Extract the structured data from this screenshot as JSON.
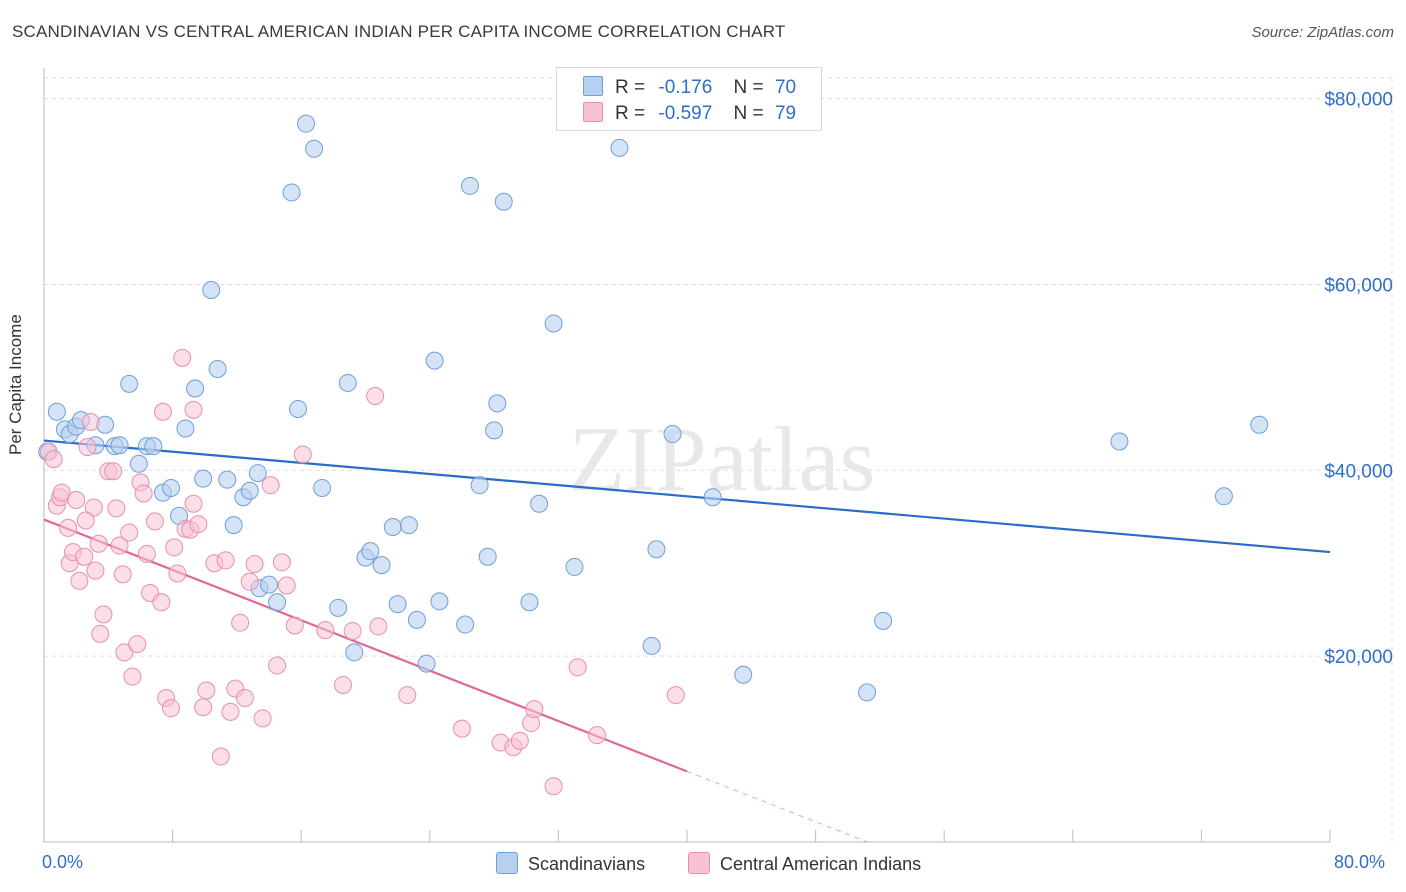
{
  "title": "SCANDINAVIAN VS CENTRAL AMERICAN INDIAN PER CAPITA INCOME CORRELATION CHART",
  "source": "Source: ZipAtlas.com",
  "watermark": "ZIPatlas",
  "legend": {
    "row1": {
      "r_label": "R =",
      "r_value": "-0.176",
      "n_label": "N =",
      "n_value": "70"
    },
    "row2": {
      "r_label": "R =",
      "r_value": "-0.597",
      "n_label": "N =",
      "n_value": "79"
    }
  },
  "bottom_legend": {
    "series1": "Scandinavians",
    "series2": "Central American Indians"
  },
  "colors": {
    "blue_fill": "#b8d0f0",
    "blue_stroke": "#6f9fd8",
    "blue_line": "#2a6dc9",
    "pink_fill": "#f7c3d3",
    "pink_stroke": "#e690ad",
    "pink_line": "#e0679a",
    "axis_text": "#2f6fc8"
  },
  "chart_data": {
    "type": "scatter",
    "title": "SCANDINAVIAN VS CENTRAL AMERICAN INDIAN PER CAPITA INCOME CORRELATION CHART",
    "xlabel": "",
    "ylabel": "Per Capita Income",
    "xlim": [
      0,
      80
    ],
    "ylim": [
      0,
      82000
    ],
    "x_tick_labels": [
      "0.0%",
      "80.0%"
    ],
    "y_tick_values": [
      20000,
      40000,
      60000,
      80000
    ],
    "y_tick_labels": [
      "$20,000",
      "$40,000",
      "$60,000",
      "$80,000"
    ],
    "grid": true,
    "legend_placement": "top-center",
    "series": [
      {
        "name": "Scandinavians",
        "r": -0.176,
        "n": 70,
        "trend": {
          "x": [
            0,
            80
          ],
          "y": [
            43200,
            31200
          ]
        },
        "points": [
          [
            0.2,
            42000
          ],
          [
            0.8,
            46300
          ],
          [
            1.3,
            44400
          ],
          [
            1.6,
            43900
          ],
          [
            2.0,
            44700
          ],
          [
            2.3,
            45400
          ],
          [
            3.2,
            42700
          ],
          [
            3.8,
            44900
          ],
          [
            4.4,
            42600
          ],
          [
            4.7,
            42700
          ],
          [
            5.3,
            49300
          ],
          [
            5.9,
            40700
          ],
          [
            6.4,
            42600
          ],
          [
            6.8,
            42600
          ],
          [
            7.4,
            37600
          ],
          [
            7.9,
            38100
          ],
          [
            8.4,
            35100
          ],
          [
            8.8,
            44500
          ],
          [
            9.4,
            48800
          ],
          [
            9.9,
            39100
          ],
          [
            10.4,
            59400
          ],
          [
            10.8,
            50900
          ],
          [
            11.4,
            39000
          ],
          [
            11.8,
            34100
          ],
          [
            12.4,
            37100
          ],
          [
            12.8,
            37800
          ],
          [
            13.3,
            39700
          ],
          [
            13.4,
            27300
          ],
          [
            14.0,
            27700
          ],
          [
            14.5,
            25800
          ],
          [
            15.4,
            69900
          ],
          [
            15.8,
            46600
          ],
          [
            16.3,
            77300
          ],
          [
            16.8,
            74600
          ],
          [
            17.3,
            38100
          ],
          [
            18.3,
            25200
          ],
          [
            18.9,
            49400
          ],
          [
            19.3,
            20400
          ],
          [
            20.0,
            30600
          ],
          [
            20.3,
            31300
          ],
          [
            21.0,
            29800
          ],
          [
            21.7,
            33900
          ],
          [
            22.0,
            25600
          ],
          [
            22.7,
            34100
          ],
          [
            23.2,
            23900
          ],
          [
            23.8,
            19200
          ],
          [
            24.3,
            51800
          ],
          [
            24.6,
            25900
          ],
          [
            26.2,
            23400
          ],
          [
            26.5,
            70600
          ],
          [
            27.1,
            38400
          ],
          [
            27.6,
            30700
          ],
          [
            28.0,
            44300
          ],
          [
            28.2,
            47200
          ],
          [
            28.6,
            68900
          ],
          [
            30.2,
            25800
          ],
          [
            30.8,
            36400
          ],
          [
            31.7,
            55800
          ],
          [
            33.0,
            29600
          ],
          [
            35.8,
            74700
          ],
          [
            37.8,
            21100
          ],
          [
            38.1,
            31500
          ],
          [
            39.1,
            43900
          ],
          [
            41.6,
            37100
          ],
          [
            43.5,
            18000
          ],
          [
            51.2,
            16100
          ],
          [
            52.2,
            23800
          ],
          [
            66.9,
            43100
          ],
          [
            73.4,
            37200
          ],
          [
            75.6,
            44900
          ]
        ]
      },
      {
        "name": "Central American Indians",
        "r": -0.597,
        "n": 79,
        "trend": {
          "x": [
            0,
            40
          ],
          "y": [
            34700,
            7600
          ]
        },
        "points": [
          [
            0.3,
            42000
          ],
          [
            0.6,
            41200
          ],
          [
            0.8,
            36200
          ],
          [
            1.0,
            37100
          ],
          [
            1.1,
            37600
          ],
          [
            1.5,
            33800
          ],
          [
            1.6,
            30000
          ],
          [
            1.8,
            31200
          ],
          [
            2.0,
            36800
          ],
          [
            2.2,
            28100
          ],
          [
            2.5,
            30700
          ],
          [
            2.7,
            42500
          ],
          [
            2.9,
            45200
          ],
          [
            3.1,
            36000
          ],
          [
            3.2,
            29200
          ],
          [
            3.4,
            32100
          ],
          [
            3.5,
            22400
          ],
          [
            3.7,
            24500
          ],
          [
            4.0,
            39900
          ],
          [
            4.3,
            39900
          ],
          [
            4.5,
            35900
          ],
          [
            4.7,
            31900
          ],
          [
            4.9,
            28800
          ],
          [
            5.0,
            20400
          ],
          [
            5.3,
            33300
          ],
          [
            5.5,
            17800
          ],
          [
            5.8,
            21300
          ],
          [
            6.0,
            38700
          ],
          [
            6.2,
            37500
          ],
          [
            6.4,
            31000
          ],
          [
            6.6,
            26800
          ],
          [
            6.9,
            34500
          ],
          [
            7.3,
            25800
          ],
          [
            7.6,
            15500
          ],
          [
            7.9,
            14400
          ],
          [
            8.1,
            31700
          ],
          [
            8.3,
            28900
          ],
          [
            8.6,
            52100
          ],
          [
            8.8,
            33700
          ],
          [
            9.1,
            33600
          ],
          [
            9.3,
            36400
          ],
          [
            9.6,
            34200
          ],
          [
            9.9,
            14500
          ],
          [
            10.1,
            16300
          ],
          [
            10.6,
            30000
          ],
          [
            11.0,
            9200
          ],
          [
            11.3,
            30300
          ],
          [
            11.6,
            14000
          ],
          [
            11.9,
            16500
          ],
          [
            12.2,
            23600
          ],
          [
            12.5,
            15500
          ],
          [
            12.8,
            28000
          ],
          [
            13.1,
            29900
          ],
          [
            13.6,
            13300
          ],
          [
            14.1,
            38400
          ],
          [
            14.5,
            19000
          ],
          [
            14.8,
            30100
          ],
          [
            15.1,
            27600
          ],
          [
            15.6,
            23300
          ],
          [
            16.1,
            41700
          ],
          [
            17.5,
            22800
          ],
          [
            18.6,
            16900
          ],
          [
            19.2,
            22700
          ],
          [
            20.6,
            48000
          ],
          [
            20.8,
            23200
          ],
          [
            22.6,
            15800
          ],
          [
            26.0,
            12200
          ],
          [
            28.4,
            10700
          ],
          [
            29.2,
            10200
          ],
          [
            29.6,
            10900
          ],
          [
            30.3,
            12800
          ],
          [
            30.5,
            14300
          ],
          [
            31.7,
            6000
          ],
          [
            33.2,
            18800
          ],
          [
            34.4,
            11500
          ],
          [
            39.3,
            15800
          ],
          [
            7.4,
            46300
          ],
          [
            9.3,
            46500
          ],
          [
            2.6,
            34600
          ]
        ]
      }
    ]
  }
}
